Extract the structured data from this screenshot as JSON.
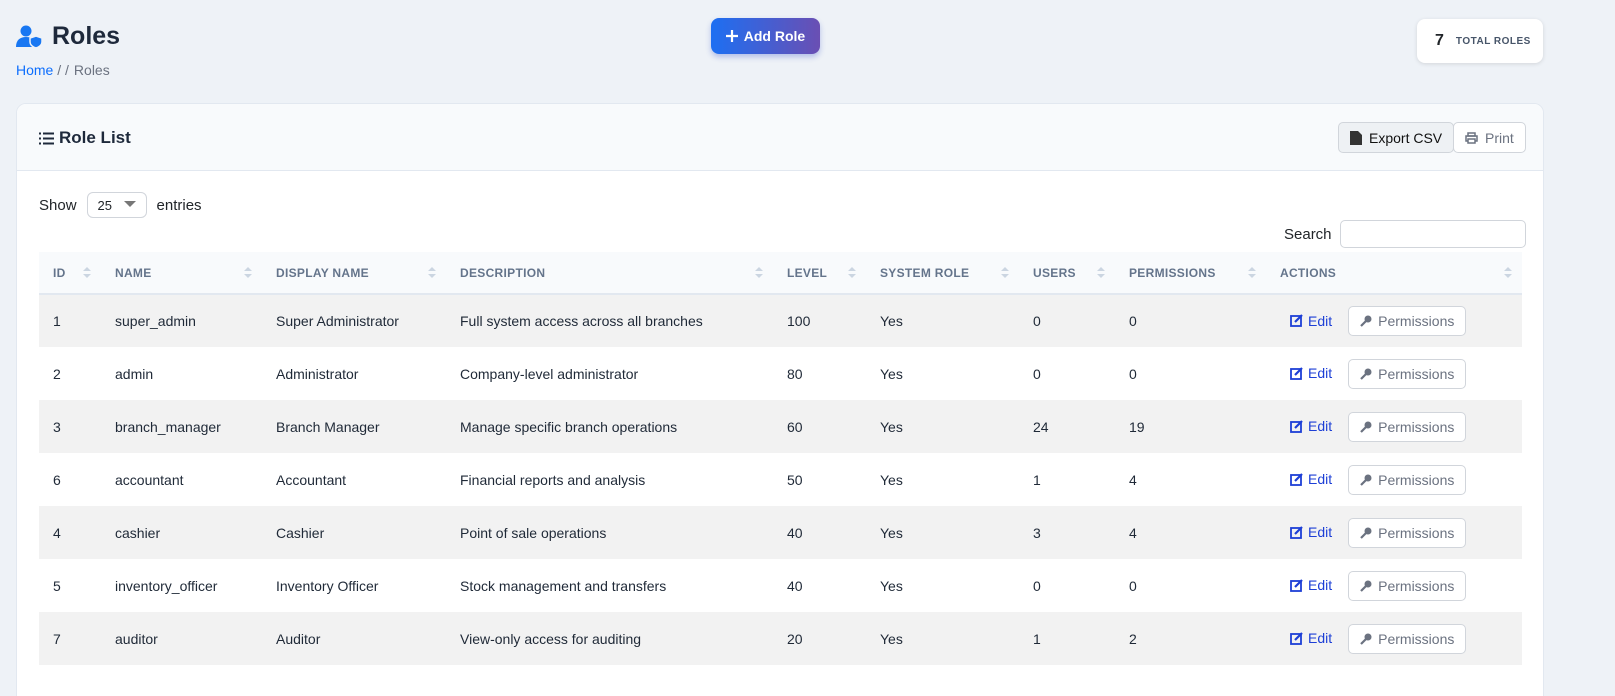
{
  "header": {
    "title": "Roles",
    "breadcrumb": [
      "Home",
      "/ /",
      "Roles"
    ],
    "add_button": "Add Role",
    "total": {
      "value": 7,
      "label": "TOTAL ROLES"
    }
  },
  "card": {
    "title": "Role List",
    "export": "Export CSV",
    "print": "Print",
    "show": "Show",
    "entries_value": 25,
    "entries": "entries",
    "search": "Search"
  },
  "table": {
    "columns": [
      "ID",
      "NAME",
      "DISPLAY NAME",
      "DESCRIPTION",
      "LEVEL",
      "SYSTEM ROLE",
      "USERS",
      "PERMISSIONS",
      "ACTIONS"
    ],
    "rows": [
      [
        1,
        "super_admin",
        "Super Administrator",
        "Full system access across all branches",
        100,
        "Yes",
        0,
        0
      ],
      [
        2,
        "admin",
        "Administrator",
        "Company-level administrator",
        80,
        "Yes",
        0,
        0
      ],
      [
        3,
        "branch_manager",
        "Branch Manager",
        "Manage specific branch operations",
        60,
        "Yes",
        24,
        19
      ],
      [
        6,
        "accountant",
        "Accountant",
        "Financial reports and analysis",
        50,
        "Yes",
        1,
        4
      ],
      [
        4,
        "cashier",
        "Cashier",
        "Point of sale operations",
        40,
        "Yes",
        3,
        4
      ],
      [
        5,
        "inventory_officer",
        "Inventory Officer",
        "Stock management and transfers",
        40,
        "Yes",
        0,
        0
      ],
      [
        7,
        "auditor",
        "Auditor",
        "View-only access for auditing",
        20,
        "Yes",
        1,
        2
      ]
    ],
    "actions": {
      "edit": "Edit",
      "permissions": "Permissions"
    }
  }
}
